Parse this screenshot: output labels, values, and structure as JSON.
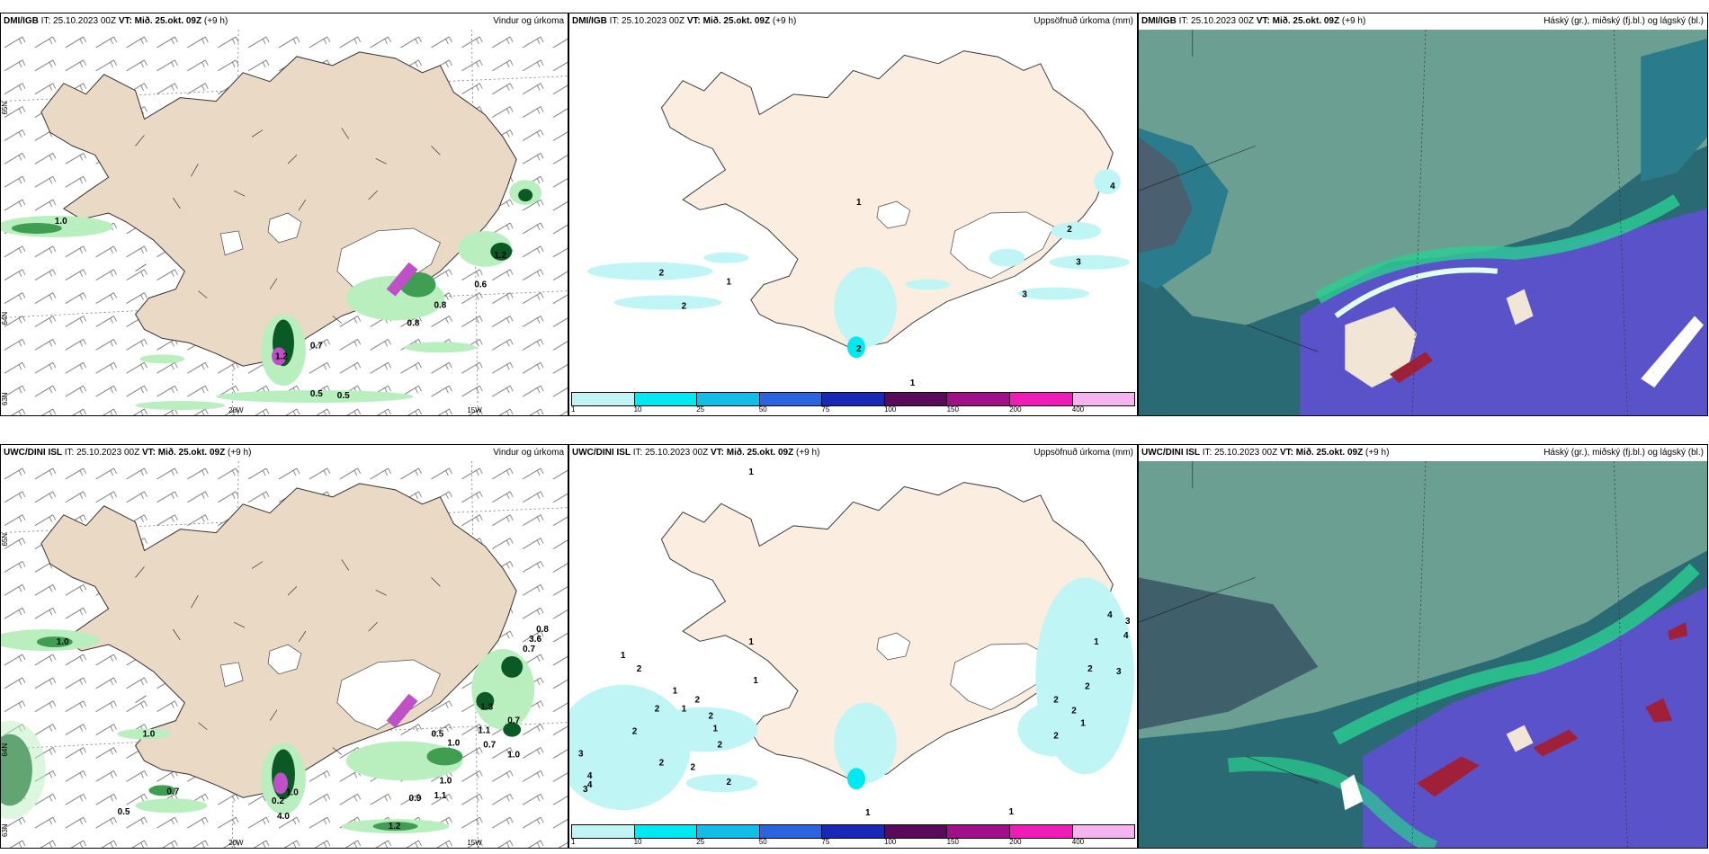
{
  "colors": {
    "land": "#eadac5",
    "precip_land": "#fbeee0",
    "glacier": "#ffffff",
    "green_light": "#b9eebf",
    "green_dark": "#0b5a25",
    "magenta": "#c050c8",
    "cloud_high": "#6a9f92",
    "cloud_mid": "#2a7b8c",
    "cloud_low": "#5a52c8",
    "cloud_base": "#2a6a74",
    "cloud_red": "#a0203a"
  },
  "colorbar": {
    "colors": [
      "#bff5f5",
      "#00e8f0",
      "#12bde8",
      "#2c63e0",
      "#1a28b8",
      "#5a0a5a",
      "#a0108a",
      "#f01cb8",
      "#f5b3ef"
    ],
    "labels": [
      "1",
      "10",
      "25",
      "50",
      "75",
      "100",
      "150",
      "200",
      "400"
    ]
  },
  "rows": [
    {
      "model": "DMI/IGB",
      "it": "IT: 25.10.2023 00Z",
      "vt": "VT: Mið. 25.okt. 09Z",
      "lead": "(+9 h)",
      "wind_panel": {
        "name": "Vindur og úrkoma",
        "lat_labels": [
          "65N",
          "64N",
          "63N"
        ],
        "lon_labels": [
          "20W",
          "15W"
        ],
        "values": [
          "1.0",
          "0.7",
          "1.2",
          "0.5",
          "0.5",
          "0.8",
          "0.8",
          "0.6",
          "1.2"
        ]
      },
      "precip_panel": {
        "name": "Uppsöfnuð úrkoma (mm)",
        "values": [
          "4",
          "2",
          "3",
          "2",
          "3",
          "2",
          "1",
          "2",
          "1",
          "1"
        ]
      },
      "cloud_panel": {
        "name": "Háský (gr.), miðský (fj.bl.) og lágský (bl.)"
      }
    },
    {
      "model": "UWC/DINI ISL",
      "it": "IT: 25.10.2023 00Z",
      "vt": "VT: Mið. 25.okt. 09Z",
      "lead": "(+9 h)",
      "wind_panel": {
        "name": "Vindur og úrkoma",
        "lat_labels": [
          "65N",
          "64N",
          "63N"
        ],
        "lon_labels": [
          "20W",
          "15W"
        ],
        "values": [
          "1.0",
          "1.0",
          "0.7",
          "0.5",
          "1.0",
          "0.2",
          "4.0",
          "1.2",
          "0.9",
          "1.1",
          "1.0",
          "0.5",
          "1.0",
          "1.1",
          "0.7",
          "1.0",
          "0.7",
          "0.7",
          "3.6",
          "0.8",
          "1.3"
        ]
      },
      "precip_panel": {
        "name": "Uppsöfnuð úrkoma (mm)",
        "values": [
          "2",
          "1",
          "2",
          "4",
          "3",
          "1",
          "2",
          "1",
          "2",
          "2",
          "2",
          "1",
          "2",
          "1",
          "3",
          "4",
          "4",
          "3",
          "3",
          "2",
          "2",
          "2",
          "2",
          "1",
          "2",
          "1",
          "2",
          "1",
          "2",
          "4",
          "1",
          "1",
          "1"
        ]
      },
      "cloud_panel": {
        "name": "Háský (gr.), miðský (fj.bl.) og lágský (bl.)"
      }
    }
  ]
}
